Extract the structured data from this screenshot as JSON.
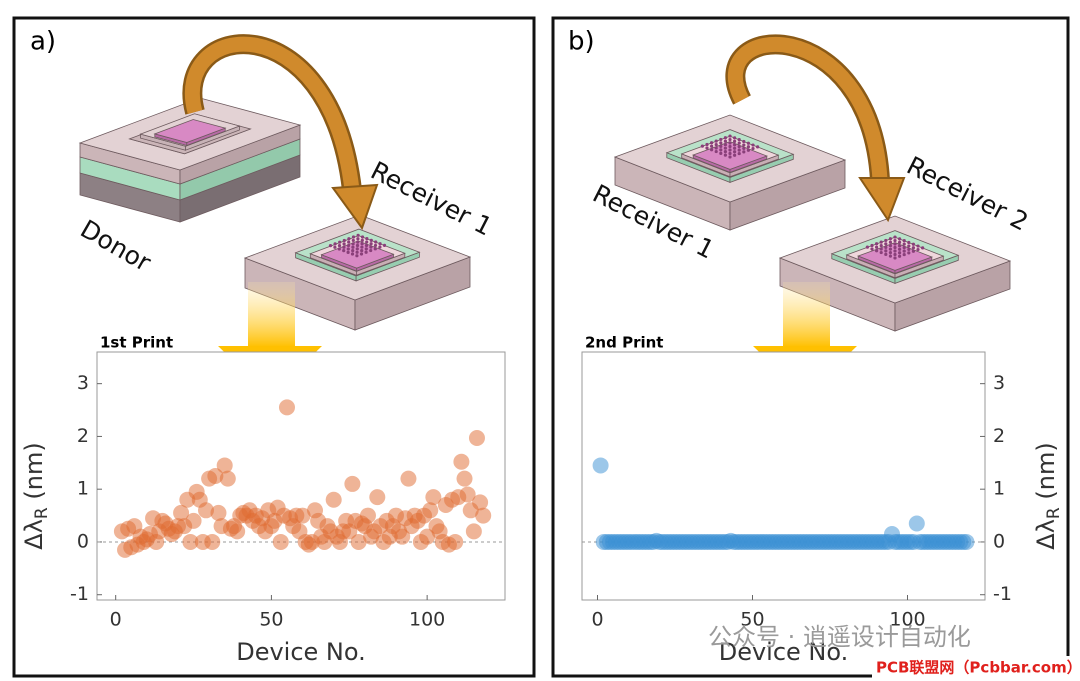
{
  "panels": [
    {
      "label": "a)",
      "diagram": [
        "Donor",
        "Receiver 1"
      ]
    },
    {
      "label": "b)",
      "diagram": [
        "Receiver 1",
        "Receiver 2"
      ]
    }
  ],
  "watermark": {
    "text": "公众号 · 逍遥设计自动化",
    "site": "PCB联盟网（Pcbbar.com）"
  },
  "chart_data": [
    {
      "type": "scatter",
      "title": "1st Print",
      "xlabel": "Device No.",
      "ylabel": "Δλ",
      "ylabel_sub": "R",
      "ylabel_unit": "(nm)",
      "yaxis_side": "left",
      "color": "#e0692f",
      "zero_line": true,
      "xlim": [
        -6,
        125
      ],
      "ylim": [
        -1.1,
        3.6
      ],
      "xticks": [
        0,
        50,
        100
      ],
      "yticks": [
        -1,
        0,
        1,
        2,
        3
      ],
      "x": [
        2,
        3,
        4,
        5,
        6,
        7,
        8,
        9,
        10,
        11,
        12,
        13,
        14,
        15,
        16,
        17,
        18,
        19,
        20,
        21,
        22,
        23,
        24,
        25,
        26,
        27,
        28,
        29,
        30,
        31,
        32,
        33,
        34,
        35,
        36,
        37,
        38,
        39,
        40,
        41,
        42,
        43,
        44,
        45,
        46,
        47,
        48,
        49,
        50,
        51,
        52,
        53,
        54,
        55,
        56,
        57,
        58,
        59,
        60,
        61,
        62,
        63,
        64,
        65,
        66,
        67,
        68,
        69,
        70,
        71,
        72,
        73,
        74,
        75,
        76,
        77,
        78,
        79,
        80,
        81,
        82,
        83,
        84,
        85,
        86,
        87,
        88,
        89,
        90,
        91,
        92,
        93,
        94,
        95,
        96,
        97,
        98,
        99,
        100,
        101,
        102,
        103,
        104,
        105,
        106,
        107,
        108,
        109,
        110,
        111,
        112,
        113,
        114,
        115,
        116,
        117,
        118
      ],
      "values": [
        0.2,
        -0.15,
        0.25,
        -0.1,
        0.3,
        -0.05,
        0.1,
        0.0,
        0.05,
        0.15,
        0.45,
        0.0,
        0.2,
        0.4,
        0.35,
        0.25,
        0.15,
        0.2,
        0.3,
        0.55,
        0.3,
        0.8,
        0.0,
        0.4,
        0.95,
        0.8,
        0.0,
        0.6,
        1.2,
        0.0,
        1.25,
        0.55,
        0.3,
        1.45,
        1.2,
        0.25,
        0.3,
        0.2,
        0.5,
        0.55,
        0.5,
        0.6,
        0.4,
        0.5,
        0.3,
        0.45,
        0.2,
        0.6,
        0.3,
        0.4,
        0.65,
        0.0,
        0.5,
        2.55,
        0.45,
        0.3,
        0.5,
        0.2,
        0.5,
        0.0,
        -0.05,
        0.0,
        0.6,
        0.4,
        0.1,
        0.0,
        0.3,
        0.2,
        0.8,
        0.1,
        0.0,
        0.2,
        0.4,
        0.2,
        1.1,
        0.4,
        0.0,
        0.35,
        0.3,
        0.5,
        0.1,
        0.2,
        0.85,
        0.3,
        0.0,
        0.4,
        0.1,
        0.3,
        0.5,
        0.2,
        0.1,
        0.45,
        1.2,
        0.3,
        0.5,
        0.4,
        0.0,
        0.5,
        0.1,
        0.6,
        0.85,
        0.3,
        0.2,
        0.0,
        0.7,
        -0.05,
        0.8,
        0.0,
        0.85,
        1.52,
        1.2,
        0.9,
        0.6,
        0.2,
        1.97,
        0.75,
        0.5
      ]
    },
    {
      "type": "scatter",
      "title": "2nd Print",
      "xlabel": "Device No.",
      "ylabel": "Δλ",
      "ylabel_sub": "R",
      "ylabel_unit": "(nm)",
      "yaxis_side": "right",
      "color": "#3a8fd4",
      "zero_line": true,
      "xlim": [
        -5,
        125
      ],
      "ylim": [
        -1.1,
        3.6
      ],
      "xticks": [
        0,
        50,
        100
      ],
      "yticks": [
        -1,
        0,
        1,
        2,
        3
      ],
      "x": [
        1,
        2,
        3,
        4,
        5,
        6,
        7,
        8,
        9,
        10,
        11,
        12,
        13,
        14,
        15,
        16,
        17,
        18,
        19,
        20,
        21,
        22,
        23,
        24,
        25,
        26,
        27,
        28,
        29,
        30,
        31,
        32,
        33,
        34,
        35,
        36,
        37,
        38,
        39,
        40,
        41,
        42,
        43,
        44,
        45,
        46,
        47,
        48,
        49,
        50,
        51,
        52,
        53,
        54,
        55,
        56,
        57,
        58,
        59,
        60,
        61,
        62,
        63,
        64,
        65,
        66,
        67,
        68,
        69,
        70,
        71,
        72,
        73,
        74,
        75,
        76,
        77,
        78,
        79,
        80,
        81,
        82,
        83,
        84,
        85,
        86,
        87,
        88,
        89,
        90,
        91,
        92,
        93,
        94,
        95,
        96,
        97,
        98,
        99,
        100,
        101,
        102,
        103,
        104,
        105,
        106,
        107,
        108,
        109,
        110,
        111,
        112,
        113,
        114,
        115,
        116,
        117,
        118,
        119
      ],
      "values": [
        1.45,
        0,
        0,
        0,
        0,
        0,
        0,
        0,
        0,
        0,
        0,
        0,
        0,
        0,
        0,
        0,
        0,
        0,
        0.02,
        0,
        0,
        0,
        0,
        0,
        0,
        0,
        0,
        0,
        0,
        0,
        0,
        0,
        0,
        0,
        0,
        0,
        0,
        0,
        0,
        0,
        0,
        0,
        0.02,
        0,
        0,
        0,
        0,
        0,
        0,
        0,
        0,
        0,
        0,
        0,
        0,
        0,
        0,
        0,
        0,
        0,
        0,
        0,
        0,
        0,
        0,
        0,
        0,
        0,
        0,
        0,
        0,
        0,
        0,
        0,
        0,
        0,
        0,
        0,
        0,
        0,
        0,
        0,
        0,
        0,
        0,
        0,
        0,
        0,
        0,
        0,
        0,
        0,
        0,
        0,
        0.15,
        0,
        0,
        0,
        0,
        0,
        0,
        0,
        0.35,
        0,
        0,
        0,
        0,
        0,
        0,
        0,
        0,
        0,
        0,
        0,
        0,
        0,
        0,
        0,
        0
      ]
    }
  ]
}
